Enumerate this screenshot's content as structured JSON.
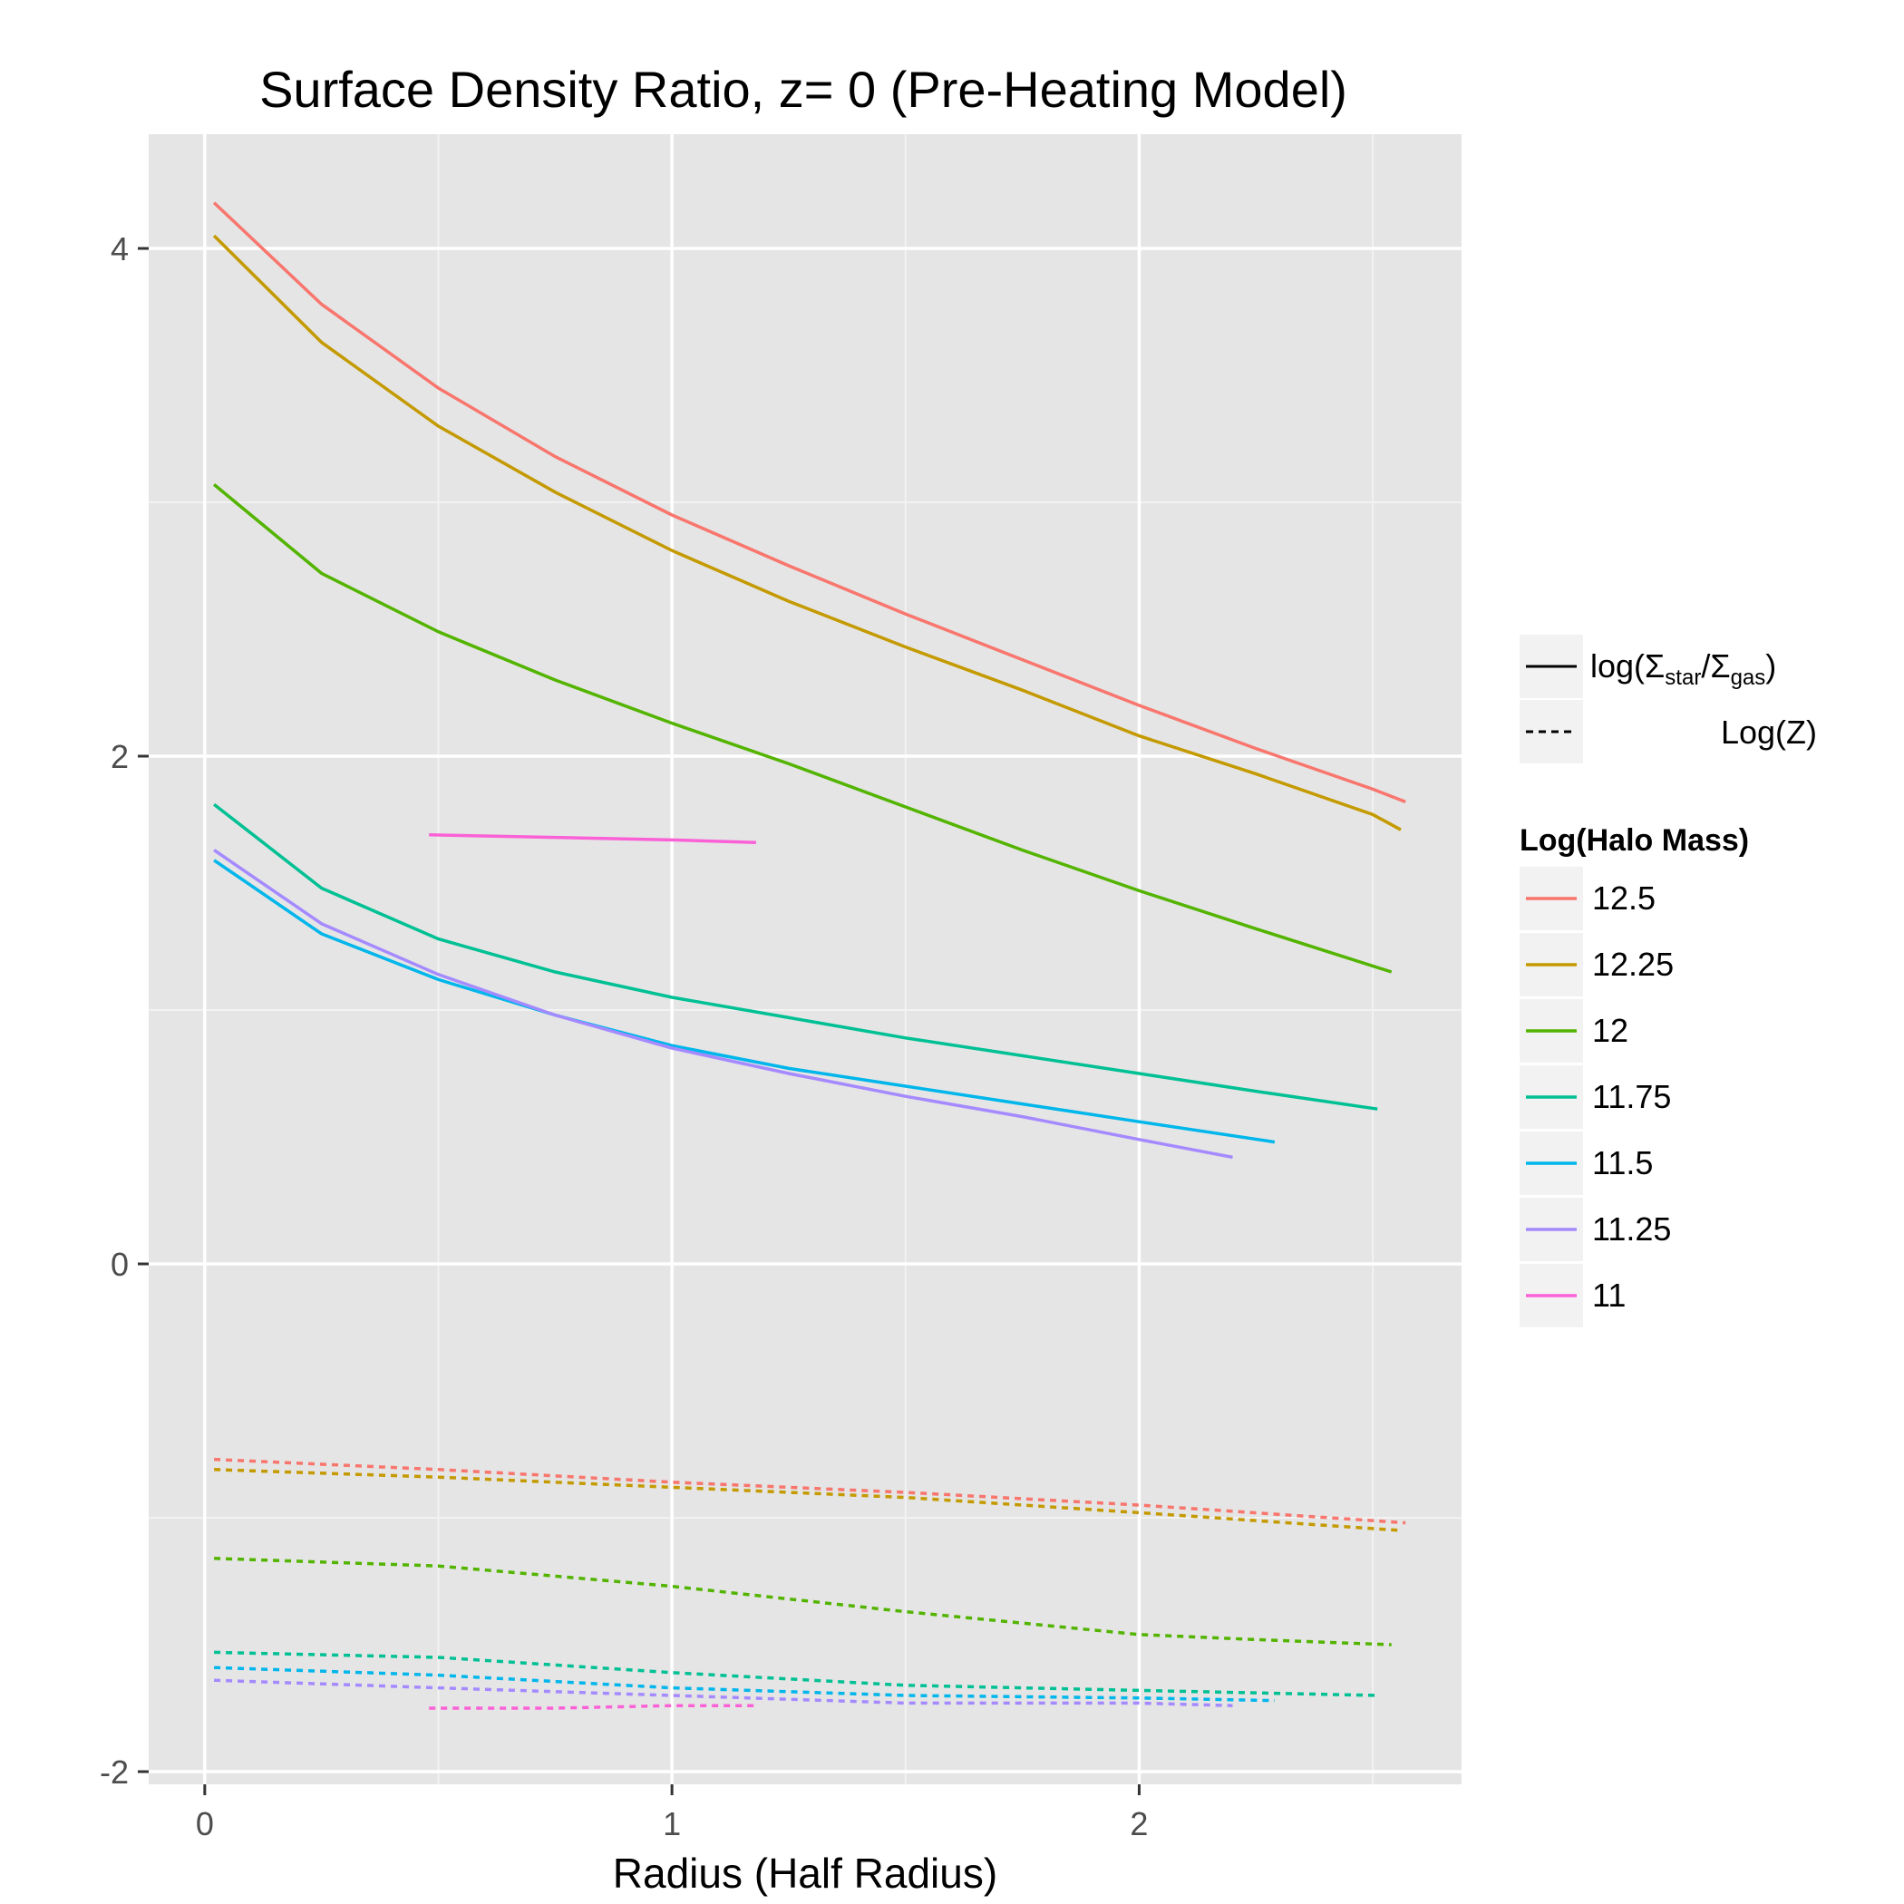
{
  "chart_data": {
    "type": "line",
    "title": "Surface Density Ratio, z= 0 (Pre-Heating Model)",
    "xlabel": "Radius (Half Radius)",
    "ylabel": "",
    "xlim": [
      -0.12,
      2.69
    ],
    "ylim": [
      -2.05,
      4.45
    ],
    "x_ticks": [
      0,
      1,
      2
    ],
    "y_ticks": [
      -2,
      0,
      2,
      4
    ],
    "x_tick_labels": [
      "0",
      "1",
      "2"
    ],
    "y_tick_labels": [
      "-2",
      "0",
      "2",
      "4"
    ],
    "grid": true,
    "legend_position": "right",
    "linetype_legend": {
      "solid_label": "log(Σstar/Σgas)",
      "solid_parts": [
        "log(Σ",
        "star",
        "/Σ",
        "gas",
        ")"
      ],
      "dashed_label": "Log(Z)"
    },
    "color_legend_title": "Log(Halo Mass)",
    "series": [
      {
        "name": "12.5",
        "color": "#F8766D",
        "solid": [
          [
            0.02,
            4.18
          ],
          [
            0.25,
            3.78
          ],
          [
            0.5,
            3.45
          ],
          [
            0.75,
            3.18
          ],
          [
            1.0,
            2.95
          ],
          [
            1.25,
            2.75
          ],
          [
            1.5,
            2.56
          ],
          [
            1.75,
            2.38
          ],
          [
            2.0,
            2.2
          ],
          [
            2.25,
            2.03
          ],
          [
            2.5,
            1.87
          ],
          [
            2.57,
            1.82
          ]
        ],
        "dashed": [
          [
            0.02,
            -0.77
          ],
          [
            0.5,
            -0.81
          ],
          [
            1.0,
            -0.86
          ],
          [
            1.5,
            -0.9
          ],
          [
            2.0,
            -0.95
          ],
          [
            2.57,
            -1.02
          ]
        ]
      },
      {
        "name": "12.25",
        "color": "#C49A00",
        "solid": [
          [
            0.02,
            4.05
          ],
          [
            0.25,
            3.63
          ],
          [
            0.5,
            3.3
          ],
          [
            0.75,
            3.04
          ],
          [
            1.0,
            2.81
          ],
          [
            1.25,
            2.61
          ],
          [
            1.5,
            2.43
          ],
          [
            1.75,
            2.26
          ],
          [
            2.0,
            2.08
          ],
          [
            2.25,
            1.93
          ],
          [
            2.5,
            1.77
          ],
          [
            2.56,
            1.71
          ]
        ],
        "dashed": [
          [
            0.02,
            -0.81
          ],
          [
            0.5,
            -0.84
          ],
          [
            1.0,
            -0.88
          ],
          [
            1.5,
            -0.92
          ],
          [
            2.0,
            -0.98
          ],
          [
            2.56,
            -1.05
          ]
        ]
      },
      {
        "name": "12",
        "color": "#53B400",
        "solid": [
          [
            0.02,
            3.07
          ],
          [
            0.25,
            2.72
          ],
          [
            0.5,
            2.49
          ],
          [
            0.75,
            2.3
          ],
          [
            1.0,
            2.13
          ],
          [
            1.25,
            1.97
          ],
          [
            1.5,
            1.8
          ],
          [
            1.75,
            1.63
          ],
          [
            2.0,
            1.47
          ],
          [
            2.25,
            1.32
          ],
          [
            2.54,
            1.15
          ]
        ],
        "dashed": [
          [
            0.02,
            -1.16
          ],
          [
            0.5,
            -1.19
          ],
          [
            1.0,
            -1.27
          ],
          [
            1.5,
            -1.37
          ],
          [
            2.0,
            -1.46
          ],
          [
            2.25,
            -1.48
          ],
          [
            2.54,
            -1.5
          ]
        ]
      },
      {
        "name": "11.75",
        "color": "#00C094",
        "solid": [
          [
            0.02,
            1.81
          ],
          [
            0.25,
            1.48
          ],
          [
            0.5,
            1.28
          ],
          [
            0.75,
            1.15
          ],
          [
            1.0,
            1.05
          ],
          [
            1.25,
            0.97
          ],
          [
            1.5,
            0.89
          ],
          [
            1.75,
            0.82
          ],
          [
            2.0,
            0.75
          ],
          [
            2.25,
            0.68
          ],
          [
            2.51,
            0.61
          ]
        ],
        "dashed": [
          [
            0.02,
            -1.53
          ],
          [
            0.5,
            -1.55
          ],
          [
            1.0,
            -1.61
          ],
          [
            1.5,
            -1.66
          ],
          [
            2.0,
            -1.68
          ],
          [
            2.51,
            -1.7
          ]
        ]
      },
      {
        "name": "11.5",
        "color": "#00B6EB",
        "solid": [
          [
            0.02,
            1.59
          ],
          [
            0.25,
            1.3
          ],
          [
            0.5,
            1.12
          ],
          [
            0.75,
            0.98
          ],
          [
            1.0,
            0.86
          ],
          [
            1.25,
            0.77
          ],
          [
            1.5,
            0.7
          ],
          [
            1.75,
            0.63
          ],
          [
            2.0,
            0.56
          ],
          [
            2.29,
            0.48
          ]
        ],
        "dashed": [
          [
            0.02,
            -1.59
          ],
          [
            0.5,
            -1.62
          ],
          [
            1.0,
            -1.67
          ],
          [
            1.5,
            -1.7
          ],
          [
            2.0,
            -1.71
          ],
          [
            2.29,
            -1.72
          ]
        ]
      },
      {
        "name": "11.25",
        "color": "#A58AFF",
        "solid": [
          [
            0.02,
            1.63
          ],
          [
            0.25,
            1.34
          ],
          [
            0.5,
            1.14
          ],
          [
            0.75,
            0.98
          ],
          [
            1.0,
            0.85
          ],
          [
            1.25,
            0.75
          ],
          [
            1.5,
            0.66
          ],
          [
            1.75,
            0.58
          ],
          [
            2.0,
            0.49
          ],
          [
            2.2,
            0.42
          ]
        ],
        "dashed": [
          [
            0.02,
            -1.64
          ],
          [
            0.5,
            -1.67
          ],
          [
            1.0,
            -1.7
          ],
          [
            1.5,
            -1.73
          ],
          [
            2.0,
            -1.73
          ],
          [
            2.2,
            -1.74
          ]
        ]
      },
      {
        "name": "11",
        "color": "#FB61D7",
        "solid": [
          [
            0.48,
            1.69
          ],
          [
            0.75,
            1.68
          ],
          [
            1.0,
            1.67
          ],
          [
            1.18,
            1.66
          ]
        ],
        "dashed": [
          [
            0.48,
            -1.75
          ],
          [
            0.75,
            -1.75
          ],
          [
            1.0,
            -1.74
          ],
          [
            1.18,
            -1.74
          ]
        ]
      }
    ]
  },
  "colors": {
    "panel_bg": "#E5E5E5",
    "grid_major": "#FFFFFF",
    "grid_minor": "#F2F2F2",
    "tick": "#333333",
    "tick_label": "#4D4D4D",
    "legend_key_bg": "#F2F2F2"
  }
}
